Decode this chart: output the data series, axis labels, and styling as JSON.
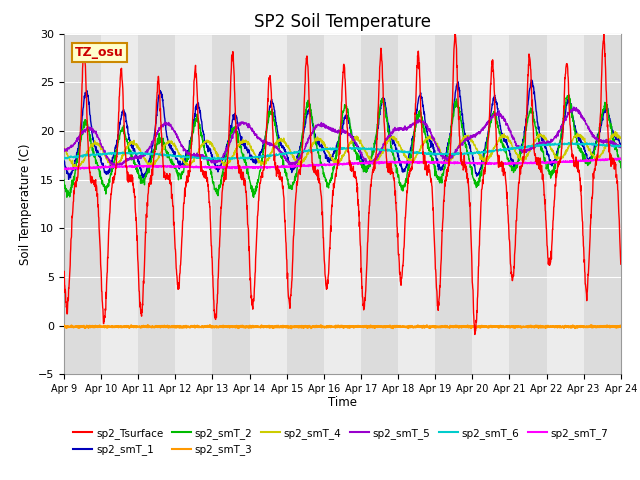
{
  "title": "SP2 Soil Temperature",
  "ylabel": "Soil Temperature (C)",
  "xlabel": "Time",
  "ylim": [
    -5,
    30
  ],
  "xlim": [
    0,
    15
  ],
  "yticks": [
    -5,
    0,
    5,
    10,
    15,
    20,
    25,
    30
  ],
  "xtick_labels": [
    "Apr 9",
    "Apr 10",
    "Apr 11",
    "Apr 12",
    "Apr 13",
    "Apr 14",
    "Apr 15",
    "Apr 16",
    "Apr 17",
    "Apr 18",
    "Apr 19",
    "Apr 20",
    "Apr 21",
    "Apr 22",
    "Apr 23",
    "Apr 24"
  ],
  "fig_bg": "#ffffff",
  "plot_bg": "#ffffff",
  "band_dark": "#dcdcdc",
  "band_light": "#ececec",
  "tz_label": "TZ_osu",
  "legend_entries": [
    {
      "label": "sp2_Tsurface",
      "color": "#ff0000"
    },
    {
      "label": "sp2_smT_1",
      "color": "#0000bb"
    },
    {
      "label": "sp2_smT_2",
      "color": "#00bb00"
    },
    {
      "label": "sp2_smT_3",
      "color": "#ff9900"
    },
    {
      "label": "sp2_smT_4",
      "color": "#cccc00"
    },
    {
      "label": "sp2_smT_5",
      "color": "#9900cc"
    },
    {
      "label": "sp2_smT_6",
      "color": "#00cccc"
    },
    {
      "label": "sp2_smT_7",
      "color": "#ff00ff"
    }
  ]
}
